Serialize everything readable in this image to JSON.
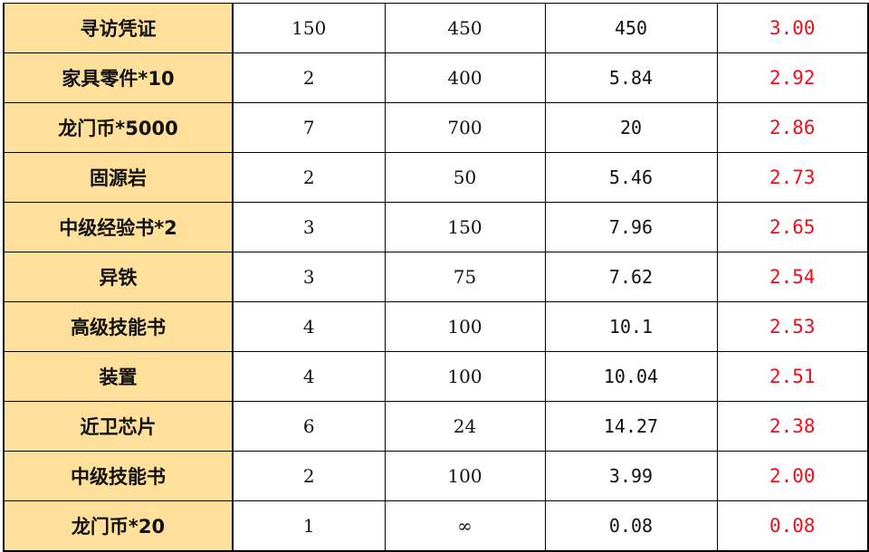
{
  "colors": {
    "name_bg": "#ffe09a",
    "ratio_text": "#e8101a"
  },
  "rows": [
    {
      "name": "寻访凭证",
      "c1": "150",
      "c2": "450",
      "c3": "450",
      "ratio": "3.00"
    },
    {
      "name": "家具零件*10",
      "c1": "2",
      "c2": "400",
      "c3": "5.84",
      "ratio": "2.92"
    },
    {
      "name": "龙门币*5000",
      "c1": "7",
      "c2": "700",
      "c3": "20",
      "ratio": "2.86"
    },
    {
      "name": "固源岩",
      "c1": "2",
      "c2": "50",
      "c3": "5.46",
      "ratio": "2.73"
    },
    {
      "name": "中级经验书*2",
      "c1": "3",
      "c2": "150",
      "c3": "7.96",
      "ratio": "2.65"
    },
    {
      "name": "异铁",
      "c1": "3",
      "c2": "75",
      "c3": "7.62",
      "ratio": "2.54"
    },
    {
      "name": "高级技能书",
      "c1": "4",
      "c2": "100",
      "c3": "10.1",
      "ratio": "2.53"
    },
    {
      "name": "装置",
      "c1": "4",
      "c2": "100",
      "c3": "10.04",
      "ratio": "2.51"
    },
    {
      "name": "近卫芯片",
      "c1": "6",
      "c2": "24",
      "c3": "14.27",
      "ratio": "2.38"
    },
    {
      "name": "中级技能书",
      "c1": "2",
      "c2": "100",
      "c3": "3.99",
      "ratio": "2.00"
    },
    {
      "name": "龙门币*20",
      "c1": "1",
      "c2": "∞",
      "c3": "0.08",
      "ratio": "0.08"
    }
  ]
}
